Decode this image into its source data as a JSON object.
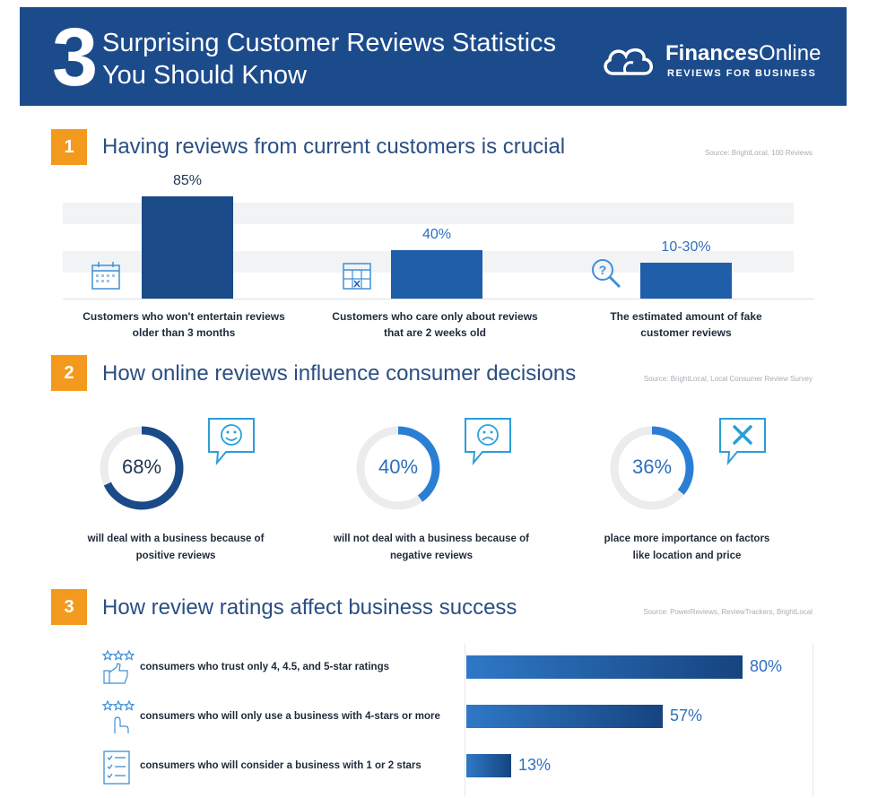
{
  "header": {
    "number": "3",
    "title_line1": "Surprising Customer Reviews Statistics",
    "title_line2": "You Should Know",
    "brand_bold": "Finances",
    "brand_rest": "Online",
    "tagline": "REVIEWS FOR BUSINESS",
    "bg_color": "#1c4b8c"
  },
  "sections": [
    {
      "number": "1",
      "title": "Having reviews from current customers is crucial",
      "source": "Source: BrightLocal, 100 Reviews"
    },
    {
      "number": "2",
      "title": "How online reviews influence consumer decisions",
      "source": "Source: BrightLocal, Local Consumer Review Survey"
    },
    {
      "number": "3",
      "title": "How review ratings affect business success",
      "source": "Source: PowerReviews, ReviewTrackers, BrightLocal"
    }
  ],
  "chart_data": [
    {
      "type": "bar",
      "title": "Having reviews from current customers is crucial",
      "categories": [
        "Customers who won't entertain reviews older than 3 months",
        "Customers who care only about reviews that are 2 weeks old",
        "The estimated amount of fake customer  reviews"
      ],
      "value_labels": [
        "85%",
        "40%",
        "10-30%"
      ],
      "values": [
        85,
        40,
        30
      ],
      "caption_lines": [
        [
          "Customers who won't entertain reviews",
          "older than 3 months"
        ],
        [
          "Customers who care only about reviews",
          "that are 2 weeks old"
        ],
        [
          "The estimated amount of fake",
          "customer  reviews"
        ]
      ],
      "icons": [
        "calendar-icon",
        "calendar-grid-icon",
        "magnifier-question-icon"
      ],
      "ylim": [
        0,
        100
      ]
    },
    {
      "type": "pie",
      "title": "How online reviews influence consumer decisions",
      "values": [
        68,
        40,
        36
      ],
      "value_labels": [
        "68%",
        "40%",
        "36%"
      ],
      "caption_lines": [
        [
          "will deal with a business because of",
          "positive reviews"
        ],
        [
          "will not deal with a business because of",
          "negative reviews"
        ],
        [
          "place more importance on factors",
          "like location and price"
        ]
      ],
      "icons": [
        "smile-chat-icon",
        "sad-chat-icon",
        "x-chat-icon"
      ],
      "colors": [
        "#1a4a88",
        "#2a7fd4",
        "#2a7fd4"
      ]
    },
    {
      "type": "bar",
      "orientation": "horizontal",
      "title": "How review ratings affect business success",
      "categories": [
        "consumers who trust only 4, 4.5, and 5-star ratings",
        "consumers who will only use a business with 4-stars or more",
        "consumers who will consider a business with 1 or 2 stars"
      ],
      "values": [
        80,
        57,
        13
      ],
      "value_labels": [
        "80%",
        "57%",
        "13%"
      ],
      "icons": [
        "stars-thumb-icon",
        "stars-hand-icon",
        "checklist-icon"
      ],
      "xlim": [
        0,
        100
      ]
    }
  ]
}
